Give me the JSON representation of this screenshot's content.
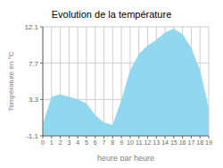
{
  "chart_data": {
    "type": "area",
    "title": "Evolution de la température",
    "x_label": "heure par heure",
    "y_label": "Température en °C",
    "x": [
      0,
      1,
      2,
      3,
      4,
      5,
      6,
      7,
      8,
      9,
      10,
      11,
      12,
      13,
      14,
      15,
      16,
      17,
      18,
      19
    ],
    "values": [
      0.2,
      3.6,
      3.9,
      3.6,
      3.3,
      2.8,
      1.4,
      0.5,
      0.2,
      3.2,
      6.8,
      8.8,
      9.8,
      10.5,
      11.4,
      11.85,
      11.2,
      9.5,
      6.8,
      2.2
    ],
    "color": "#90d8f0",
    "line_style": "dotted",
    "xlim": [
      0,
      19
    ],
    "xticks": [
      0,
      1,
      2,
      3,
      4,
      5,
      6,
      7,
      8,
      9,
      10,
      11,
      12,
      13,
      14,
      15,
      16,
      17,
      18,
      19
    ],
    "ylim": [
      -1.1,
      12.1
    ],
    "yticks": [
      -1.1,
      3.3,
      7.7,
      12.1
    ],
    "grid": true
  }
}
